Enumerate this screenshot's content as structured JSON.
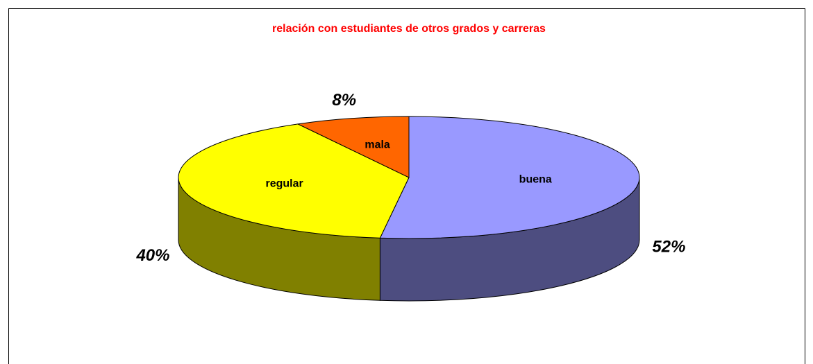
{
  "chart_data": {
    "type": "pie3d",
    "title": "relación con estudiantes de otros grados y carreras",
    "categories": [
      "buena",
      "regular",
      "mala"
    ],
    "values": [
      52,
      40,
      8
    ],
    "value_labels": [
      "52%",
      "40%",
      "8%"
    ],
    "colors": [
      "#9999ff",
      "#ffff00",
      "#ff6600"
    ],
    "side_colors": [
      "#4d4d80",
      "#808000",
      "#803300"
    ]
  }
}
